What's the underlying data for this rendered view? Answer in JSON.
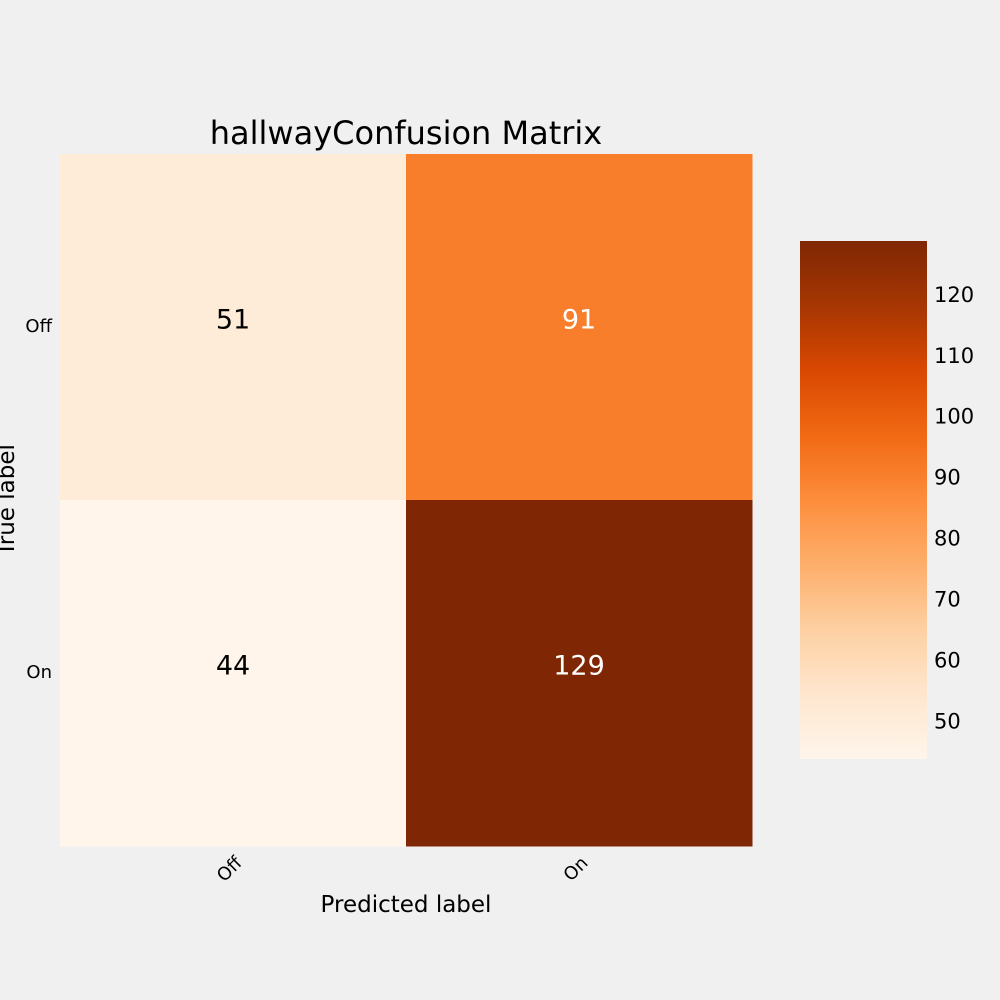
{
  "chart_data": {
    "type": "heatmap",
    "title": "hallwayConfusion Matrix",
    "xlabel": "Predicted label",
    "ylabel": "True label",
    "x_categories": [
      "Off",
      "On"
    ],
    "y_categories": [
      "Off",
      "On"
    ],
    "values": [
      [
        51,
        91
      ],
      [
        44,
        129
      ]
    ],
    "colormap": "Oranges",
    "color_stops": [
      "#fff5eb",
      "#fee6ce",
      "#fdd0a2",
      "#fdae6b",
      "#fd8d3c",
      "#f16913",
      "#d94801",
      "#a63603",
      "#7f2704"
    ],
    "colorbar": {
      "range": [
        44,
        129
      ],
      "ticks": [
        50,
        60,
        70,
        80,
        90,
        100,
        110,
        120
      ]
    },
    "text_color_dark": "#000000",
    "text_color_light": "#ffffff",
    "grid": false
  }
}
